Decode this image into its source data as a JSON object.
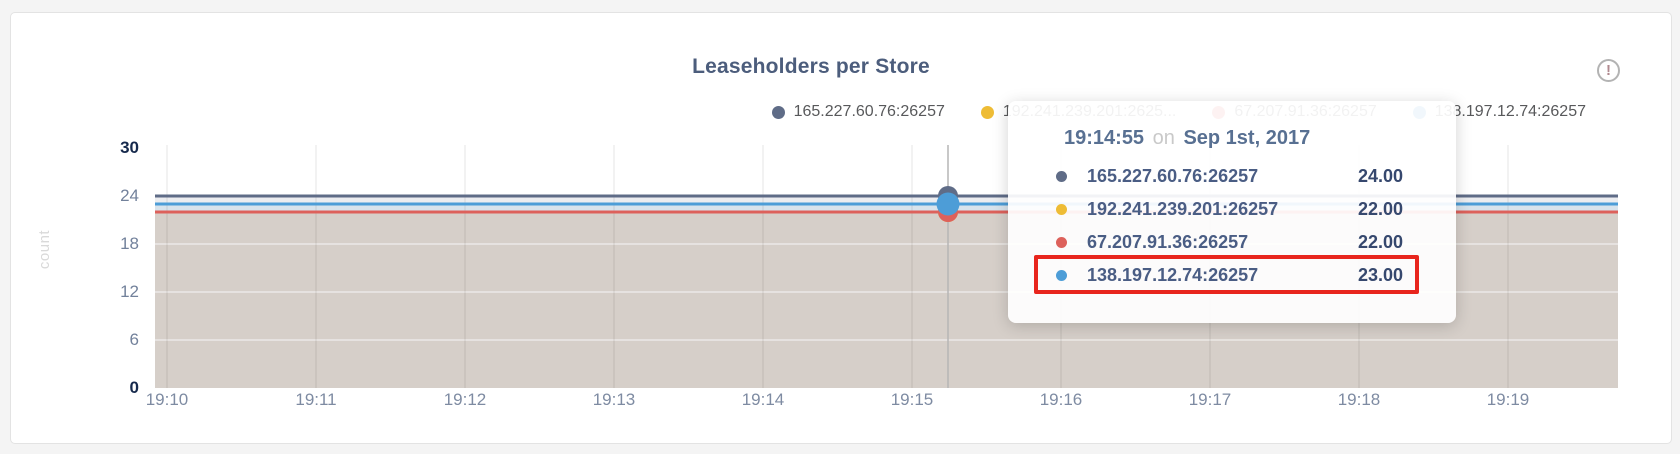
{
  "card": {
    "title": "Leaseholders per Store",
    "info_icon": "!"
  },
  "chart_data": {
    "type": "area",
    "title": "Leaseholders per Store",
    "xlabel": "",
    "ylabel": "count",
    "ylim": [
      0,
      30
    ],
    "yticks": [
      0,
      6,
      12,
      18,
      24,
      30
    ],
    "x_ticks": [
      "19:10",
      "19:11",
      "19:12",
      "19:13",
      "19:14",
      "19:15",
      "19:16",
      "19:17",
      "19:18",
      "19:19"
    ],
    "grid": true,
    "legend_position": "top-right",
    "series": [
      {
        "name": "165.227.60.76:26257",
        "legend_label": "165.227.60.76:26257",
        "color": "#5f6c87",
        "value": 24
      },
      {
        "name": "192.241.239.201:26257",
        "legend_label": "192.241.239.201:2625...",
        "color": "#eebc35",
        "value": 22
      },
      {
        "name": "67.207.91.36:26257",
        "legend_label": "67.207.91.36:26257",
        "color": "#dd615b",
        "value": 22
      },
      {
        "name": "138.197.12.74:26257",
        "legend_label": "138.197.12.74:26257",
        "color": "#4d9dd7",
        "value": 23
      }
    ],
    "note": "All four series are flat (constant) across the 19:10-19:19 window"
  },
  "tooltip": {
    "time": "19:14:55",
    "conjunction": "on",
    "date": "Sep 1st, 2017",
    "highlight_color": "#e8251d",
    "rows": [
      {
        "name": "165.227.60.76:26257",
        "value": "24.00",
        "highlighted": false
      },
      {
        "name": "192.241.239.201:26257",
        "value": "22.00",
        "highlighted": false
      },
      {
        "name": "67.207.91.36:26257",
        "value": "22.00",
        "highlighted": false
      },
      {
        "name": "138.197.12.74:26257",
        "value": "23.00",
        "highlighted": true
      }
    ]
  }
}
